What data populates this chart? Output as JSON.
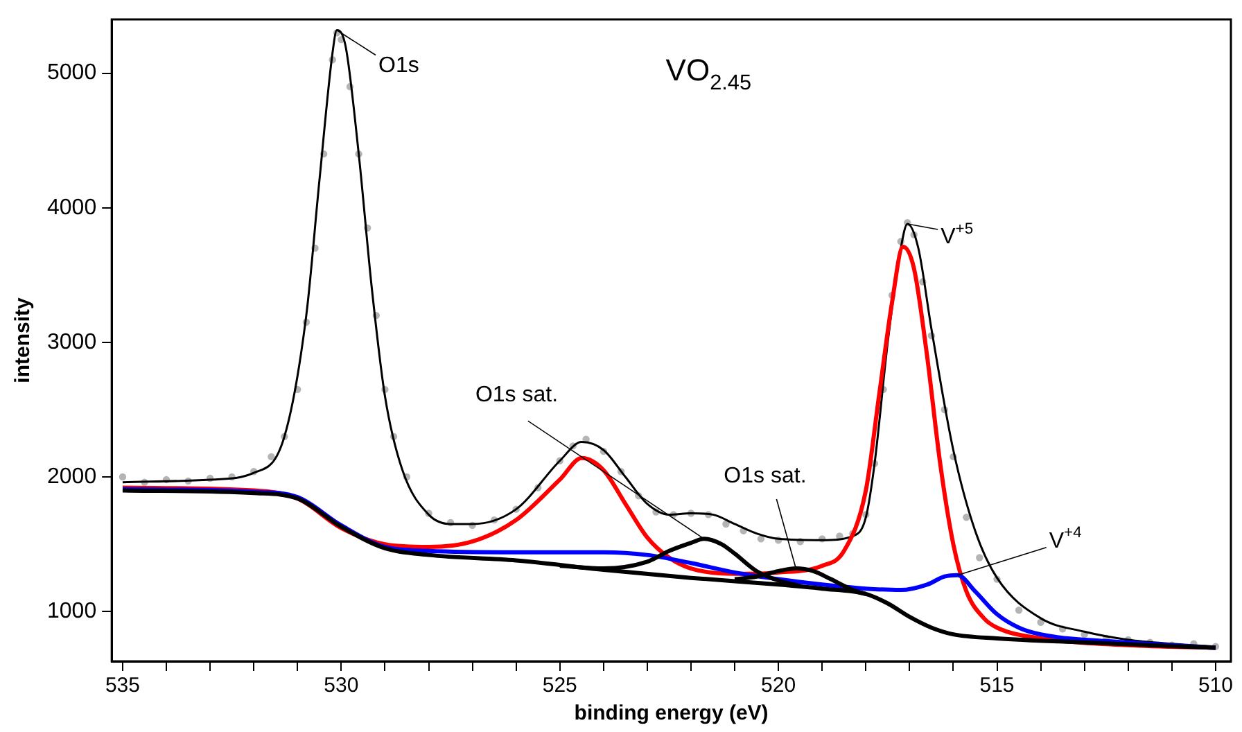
{
  "chart_data": {
    "type": "line",
    "title": "VO$_{2.45}$",
    "xlabel": "binding energy (eV)",
    "ylabel": "intensity",
    "xlim": [
      535.25,
      509.65
    ],
    "ylim": [
      630,
      5400
    ],
    "xticks": [
      535,
      {
        "value": 534,
        "label": null
      },
      {
        "value": 533,
        "label": null
      },
      {
        "value": 532,
        "label": null
      },
      {
        "value": 531,
        "label": null
      },
      530,
      {
        "value": 529,
        "label": null
      },
      {
        "value": 528,
        "label": null
      },
      {
        "value": 527,
        "label": null
      },
      {
        "value": 526,
        "label": null
      },
      525,
      {
        "value": 524,
        "label": null
      },
      {
        "value": 523,
        "label": null
      },
      {
        "value": 522,
        "label": null
      },
      {
        "value": 521,
        "label": null
      },
      520,
      {
        "value": 519,
        "label": null
      },
      {
        "value": 518,
        "label": null
      },
      {
        "value": 517,
        "label": null
      },
      {
        "value": 516,
        "label": null
      },
      515,
      {
        "value": 514,
        "label": null
      },
      {
        "value": 513,
        "label": null
      },
      {
        "value": 512,
        "label": null
      },
      {
        "value": 511,
        "label": null
      },
      510
    ],
    "yticks": [
      1000,
      2000,
      3000,
      4000,
      5000
    ],
    "series": [
      {
        "type": "scatter",
        "marker": "circle",
        "color": "#b4b4b4",
        "x": [
          535,
          534.5,
          534,
          533.5,
          533,
          532.5,
          532,
          531.6,
          531.3,
          531,
          530.8,
          530.6,
          530.4,
          530.2,
          530.1,
          530,
          529.8,
          529.6,
          529.4,
          529.2,
          529,
          528.8,
          528.5,
          528,
          527.5,
          527,
          526.5,
          526,
          525.5,
          525,
          524.7,
          524.4,
          524,
          523.6,
          523.2,
          522.8,
          522.4,
          522,
          521.6,
          521.2,
          520.8,
          520.4,
          520,
          519.5,
          519,
          518.6,
          518.3,
          518,
          517.8,
          517.6,
          517.4,
          517.2,
          517.05,
          516.9,
          516.7,
          516.5,
          516.2,
          516,
          515.7,
          515.4,
          515,
          514.5,
          514,
          513.5,
          513,
          512.5,
          512,
          511.5,
          511,
          510.5,
          510
        ],
        "values": [
          2000,
          1960,
          1980,
          1970,
          1990,
          2000,
          2040,
          2150,
          2300,
          2650,
          3150,
          3700,
          4400,
          5100,
          5300,
          5250,
          4900,
          4400,
          3850,
          3200,
          2650,
          2300,
          2000,
          1730,
          1660,
          1640,
          1680,
          1760,
          1920,
          2120,
          2230,
          2280,
          2190,
          2040,
          1860,
          1740,
          1720,
          1730,
          1720,
          1650,
          1600,
          1540,
          1530,
          1520,
          1540,
          1560,
          1580,
          1720,
          2100,
          2650,
          3350,
          3750,
          3890,
          3800,
          3450,
          3050,
          2500,
          2150,
          1700,
          1400,
          1240,
          1010,
          920,
          870,
          830,
          800,
          790,
          770,
          750,
          760,
          740
        ]
      },
      {
        "color": "#000000",
        "x": [
          535,
          533,
          532,
          531.3,
          530.8,
          530.5,
          530.2,
          530.1,
          529.9,
          529.6,
          529.3,
          529,
          528.6,
          528,
          527.5,
          527,
          526,
          525,
          524.5,
          524,
          523.5,
          523,
          522.5,
          522,
          521.5,
          521,
          520.5,
          520,
          519,
          518.3,
          518,
          517.8,
          517.5,
          517.2,
          517.05,
          516.8,
          516.5,
          516,
          515.5,
          515,
          514,
          513,
          512,
          511,
          510
        ],
        "values": [
          1960,
          1980,
          2030,
          2300,
          3200,
          4200,
          5150,
          5320,
          5200,
          4400,
          3400,
          2600,
          2050,
          1720,
          1650,
          1650,
          1760,
          2120,
          2260,
          2200,
          2000,
          1800,
          1720,
          1730,
          1720,
          1650,
          1580,
          1540,
          1530,
          1560,
          1700,
          2100,
          3000,
          3700,
          3880,
          3700,
          3100,
          2200,
          1600,
          1250,
          950,
          850,
          790,
          760,
          740
        ]
      },
      {
        "color": "#ff0000",
        "x": [
          535,
          532,
          531,
          530,
          529,
          528,
          527,
          526,
          525,
          524.5,
          524,
          523.5,
          523,
          522.5,
          522,
          521,
          520,
          519,
          518.5,
          518,
          517.7,
          517.4,
          517.15,
          516.9,
          516.6,
          516.3,
          516,
          515.7,
          515.3,
          515,
          514,
          512,
          510
        ],
        "values": [
          1920,
          1900,
          1840,
          1620,
          1500,
          1480,
          1520,
          1680,
          1980,
          2140,
          2050,
          1800,
          1550,
          1400,
          1320,
          1280,
          1290,
          1340,
          1450,
          1900,
          2600,
          3300,
          3710,
          3550,
          2900,
          2100,
          1500,
          1150,
          950,
          880,
          800,
          750,
          730
        ]
      },
      {
        "color": "#0000ff",
        "x": [
          535,
          532,
          531,
          530,
          529,
          528,
          526,
          525,
          524,
          523,
          522,
          521,
          520,
          519,
          518,
          517.2,
          516.6,
          516.2,
          515.9,
          515.5,
          515,
          514.5,
          514,
          512,
          510
        ],
        "values": [
          1910,
          1890,
          1850,
          1640,
          1480,
          1450,
          1440,
          1440,
          1440,
          1420,
          1360,
          1290,
          1240,
          1200,
          1170,
          1160,
          1200,
          1260,
          1270,
          1150,
          980,
          880,
          830,
          770,
          730
        ]
      },
      {
        "color": "#000000",
        "x": [
          535,
          532,
          531,
          530,
          529,
          528,
          526,
          524,
          522,
          520,
          519,
          518,
          517.5,
          517,
          516.5,
          516,
          515,
          513,
          510
        ],
        "values": [
          1900,
          1880,
          1840,
          1630,
          1470,
          1420,
          1380,
          1310,
          1250,
          1200,
          1170,
          1130,
          1060,
          960,
          880,
          830,
          800,
          770,
          730
        ]
      },
      {
        "color": "#000000",
        "x": [
          525,
          524,
          523,
          522.5,
          522,
          521.7,
          521.3,
          521,
          520.5,
          520,
          519.5
        ],
        "values": [
          1340,
          1320,
          1370,
          1450,
          1510,
          1540,
          1500,
          1430,
          1300,
          1230,
          1190
        ]
      },
      {
        "color": "#000000",
        "x": [
          521,
          520.5,
          520,
          519.6,
          519.2,
          518.8,
          518.3,
          518
        ],
        "values": [
          1240,
          1260,
          1300,
          1320,
          1300,
          1240,
          1160,
          1130
        ]
      }
    ],
    "annotations": [
      {
        "text": "O1s",
        "x": 530.1,
        "y": 5320
      },
      {
        "text": "V$^{+5}$",
        "x": 517.05,
        "y": 3880
      },
      {
        "text": "V$^{+4}$",
        "x": 515.9,
        "y": 1270
      },
      {
        "text": "O1s sat.",
        "x": 521.7,
        "y": 1540
      },
      {
        "text": "O1s sat.",
        "x": 519.6,
        "y": 1320
      }
    ]
  }
}
